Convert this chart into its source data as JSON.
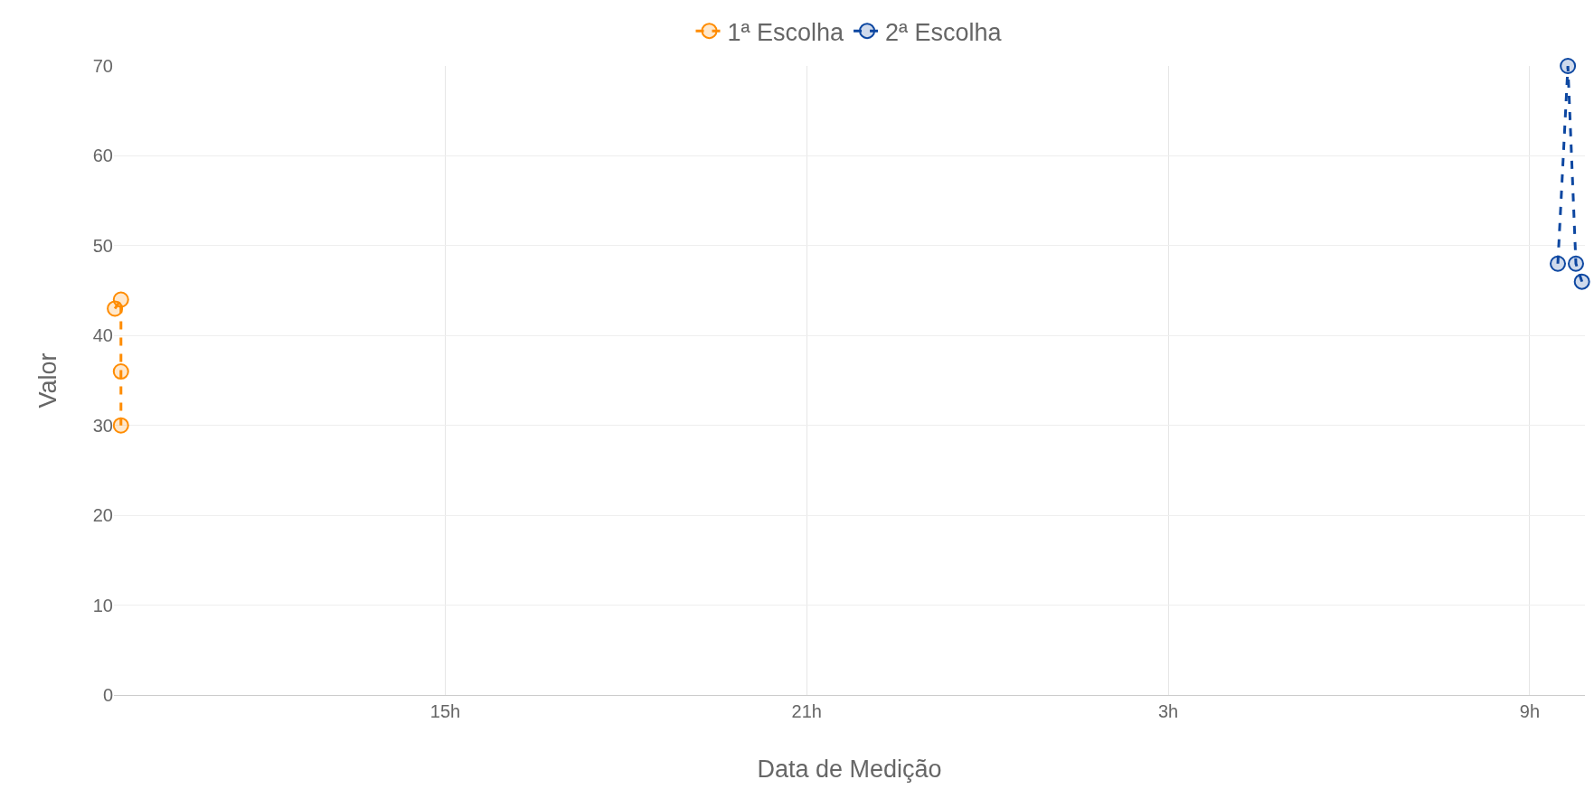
{
  "chart_data": {
    "type": "line",
    "xlabel": "Data de Medição",
    "ylabel": "Valor",
    "series": [
      {
        "name": "1ª Escolha",
        "color": "#ff8c00",
        "x": [
          "--01-01T09:31",
          "--01-01T09:37",
          "--01-01T09:37",
          "--01-01T09:37"
        ],
        "values": [
          43,
          44,
          36,
          30
        ]
      },
      {
        "name": "2ª Escolha",
        "color": "#0d47a1",
        "x": [
          "--01-02T09:28",
          "--01-02T09:38",
          "--01-02T09:46",
          "--01-02T09:52"
        ],
        "values": [
          48,
          70,
          48,
          46
        ]
      }
    ],
    "xlim": [
      "--01-01T09:30",
      "--01-02T09:55"
    ],
    "xticks": [
      {
        "value": "--01-01T15:00",
        "label": "15h"
      },
      {
        "value": "--01-01T21:00",
        "label": "21h"
      },
      {
        "value": "--01-02T03:00",
        "label": "3h"
      },
      {
        "value": "--01-02T09:00",
        "label": "9h"
      }
    ],
    "ylim": [
      0,
      70
    ],
    "yticks": [
      0,
      10,
      20,
      30,
      40,
      50,
      60,
      70
    ],
    "grid": true,
    "legend": "top",
    "marker": "circle",
    "line_style": "dashed"
  }
}
